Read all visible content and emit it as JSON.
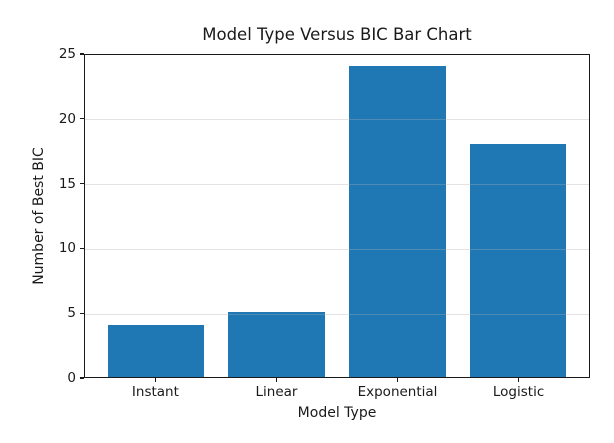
{
  "chart_data": {
    "type": "bar",
    "title": "Model Type Versus BIC Bar Chart",
    "xlabel": "Model Type",
    "ylabel": "Number of Best BIC",
    "categories": [
      "Instant",
      "Linear",
      "Exponential",
      "Logistic"
    ],
    "values": [
      4,
      5,
      24,
      18
    ],
    "ylim": [
      0,
      25
    ],
    "yticks": [
      0,
      5,
      10,
      15,
      20,
      25
    ],
    "grid": true,
    "grid_over_bars": true,
    "legend_position": "none",
    "bar_color": "#1f77b4",
    "grid_color": "#b0b0b0",
    "axis_color": "#1a1a1a",
    "background_color": "#ffffff"
  }
}
